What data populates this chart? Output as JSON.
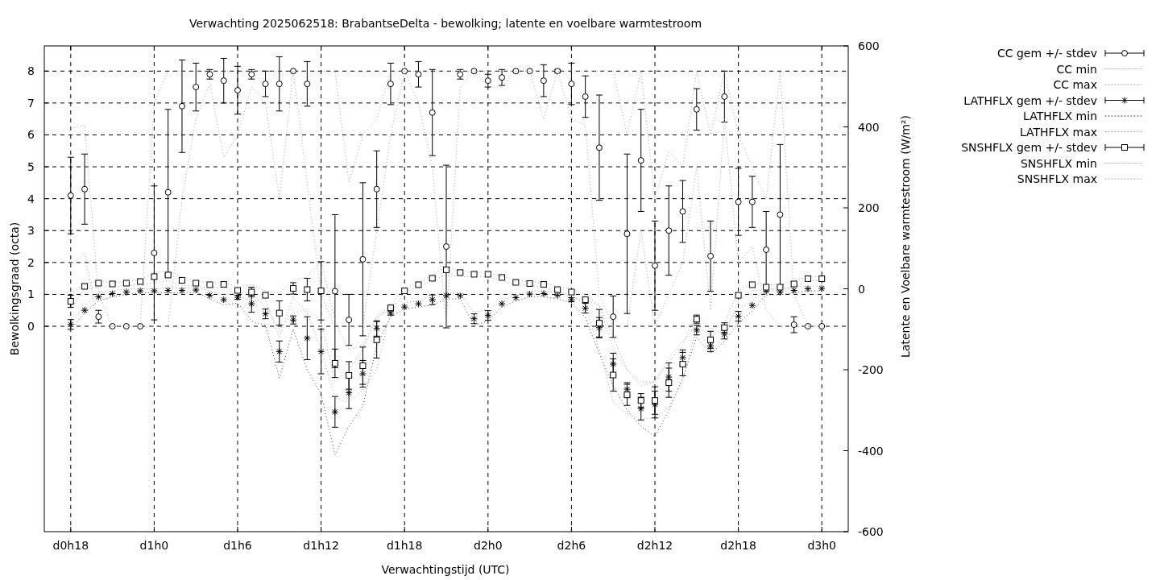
{
  "chart_data": {
    "type": "scatter",
    "title": "Verwachting 2025062518: BrabantseDelta - bewolking; latente en voelbare warmtestroom",
    "xlabel": "Verwachtingstijd (UTC)",
    "ylabel": "Bewolkingsgraad (octa)",
    "y2label": "Latente en Voelbare warmtestroom (W/m²)",
    "categories": [
      "d0h18",
      null,
      null,
      null,
      null,
      null,
      "d1h0",
      null,
      null,
      null,
      null,
      null,
      "d1h6",
      null,
      null,
      null,
      null,
      null,
      "d1h12",
      null,
      null,
      null,
      null,
      null,
      "d1h18",
      null,
      null,
      null,
      null,
      null,
      "d2h0",
      null,
      null,
      null,
      null,
      null,
      "d2h6",
      null,
      null,
      null,
      null,
      null,
      "d2h12",
      null,
      null,
      null,
      null,
      null,
      "d2h18",
      null,
      null,
      null,
      null,
      null,
      "d3h0"
    ],
    "ylim": [
      -6.44,
      8.79
    ],
    "yticks": [
      0,
      1,
      2,
      3,
      4,
      5,
      6,
      7,
      8
    ],
    "y2lim": [
      -600,
      600
    ],
    "y2ticks": [
      -600,
      -400,
      -200,
      0,
      200,
      400,
      600
    ],
    "grid": true,
    "legend": "right",
    "series": [
      {
        "name": "CC gem +/- stdev",
        "marker": "circle",
        "color": "#000000",
        "values": [
          4.1,
          4.3,
          0.3,
          0,
          0,
          0,
          2.3,
          4.2,
          6.9,
          7.5,
          7.9,
          7.7,
          7.4,
          7.9,
          7.6,
          7.6,
          8,
          7.6,
          null,
          1.1,
          0.2,
          2.1,
          4.3,
          7.6,
          8,
          7.9,
          6.7,
          2.5,
          7.9,
          8,
          7.7,
          7.8,
          8,
          8,
          7.7,
          8,
          7.6,
          7.2,
          5.6,
          0.3,
          2.9,
          5.2,
          1.9,
          3.0,
          3.6,
          6.8,
          2.2,
          7.2,
          3.9,
          3.9,
          2.4,
          3.5,
          0.05,
          0,
          0
        ],
        "errors": [
          1.2,
          1.1,
          0.2,
          null,
          null,
          null,
          2.1,
          2.6,
          1.45,
          0.75,
          0.15,
          0.7,
          0.75,
          0.15,
          0.4,
          0.85,
          null,
          0.7,
          null,
          2.4,
          0.8,
          2.4,
          1.2,
          0.65,
          null,
          0.4,
          1.35,
          2.55,
          0.15,
          null,
          0.2,
          0.25,
          null,
          null,
          0.5,
          0.05,
          0.65,
          0.65,
          1.65,
          0.65,
          2.5,
          1.6,
          1.4,
          1.4,
          0.97,
          0.65,
          1.1,
          0.8,
          1.05,
          0.8,
          1.2,
          2.2,
          0.25,
          null,
          null
        ]
      },
      {
        "name": "CC min",
        "type": "line",
        "line_style": "dotted",
        "color": "#a0a0a0",
        "values": [
          1.9,
          2.3,
          0,
          0,
          0,
          0,
          0,
          0,
          4,
          6.5,
          7.6,
          5.3,
          6,
          7.5,
          7,
          4,
          8,
          4.5,
          1,
          0,
          0,
          0,
          3,
          6,
          8,
          7,
          5,
          0,
          7.5,
          8,
          7.5,
          7.5,
          8,
          8,
          6.5,
          8,
          6.5,
          6.3,
          1,
          0,
          0,
          3,
          0,
          1,
          2,
          5,
          0.5,
          6.5,
          2,
          2.5,
          0.5,
          0,
          0,
          0,
          0
        ]
      },
      {
        "name": "CC max",
        "type": "line",
        "line_style": "dotted",
        "color": "#a0a0a0",
        "values": [
          6.2,
          6.3,
          1,
          0,
          0,
          0,
          7,
          8,
          8,
          8,
          8,
          8,
          8,
          8,
          8,
          8,
          8,
          8,
          8,
          8,
          4.5,
          6,
          6.5,
          8,
          8,
          8,
          8,
          8,
          8,
          8,
          8,
          8,
          8,
          8,
          8,
          8,
          8,
          8,
          8,
          8,
          6,
          8,
          4,
          5.5,
          5,
          8,
          6,
          8,
          6,
          5,
          4,
          8,
          1,
          0,
          0
        ]
      },
      {
        "name": "LATHFLX gem +/- stdev",
        "marker": "cross",
        "axis": "y2",
        "color": "#000000",
        "values": [
          -88,
          -53,
          -20,
          -12,
          -8,
          -5,
          -5,
          -4,
          -4,
          -3,
          -16,
          -27,
          -21,
          -37,
          -62,
          -155,
          -77,
          -122,
          -155,
          -304,
          -257,
          -210,
          -98,
          -60,
          -45,
          -37,
          -27,
          -17,
          -17,
          -74,
          -66,
          -37,
          -22,
          -13,
          -12,
          -16,
          -27,
          -48,
          -96,
          -186,
          -248,
          -296,
          -286,
          -218,
          -170,
          -102,
          -141,
          -112,
          -68,
          -41,
          -6,
          -8,
          -4,
          0,
          1
        ],
        "errors": [
          12,
          null,
          null,
          null,
          null,
          null,
          null,
          null,
          null,
          null,
          null,
          null,
          5,
          21,
          12,
          26,
          10,
          53,
          55,
          38,
          39,
          33,
          19,
          5,
          null,
          null,
          12,
          null,
          null,
          12,
          12,
          null,
          null,
          null,
          null,
          null,
          5,
          12,
          25,
          27,
          16,
          28,
          33,
          35,
          19,
          12,
          14,
          12,
          12,
          null,
          null,
          null,
          null,
          null,
          null
        ]
      },
      {
        "name": "LATHFLX min",
        "type": "line",
        "line_style": "dotted",
        "axis": "y2",
        "color": "#404040",
        "values": [
          -100,
          -60,
          -30,
          -20,
          -15,
          -10,
          -10,
          -10,
          -10,
          -8,
          -25,
          -40,
          -35,
          -80,
          -90,
          -220,
          -100,
          -200,
          -260,
          -410,
          -340,
          -290,
          -140,
          -70,
          -50,
          -45,
          -40,
          -25,
          -25,
          -90,
          -80,
          -45,
          -30,
          -20,
          -20,
          -25,
          -35,
          -70,
          -160,
          -240,
          -300,
          -340,
          -365,
          -300,
          -220,
          -120,
          -160,
          -130,
          -85,
          -55,
          -15,
          -15,
          -10,
          -5,
          -5
        ]
      },
      {
        "name": "LATHFLX max",
        "type": "line",
        "line_style": "dotted",
        "axis": "y2",
        "color": "#a0a0a0",
        "values": [
          -75,
          -45,
          -10,
          -5,
          0,
          0,
          0,
          2,
          2,
          3,
          -5,
          -15,
          -10,
          -10,
          -45,
          -100,
          -60,
          -50,
          -80,
          -230,
          -200,
          -150,
          -70,
          -50,
          -35,
          -30,
          -15,
          -10,
          -10,
          -60,
          -50,
          -30,
          -15,
          -5,
          -5,
          -10,
          -20,
          -30,
          -40,
          -120,
          -200,
          -240,
          -230,
          -170,
          -130,
          -90,
          -120,
          -95,
          -50,
          -30,
          0,
          0,
          5,
          5,
          8
        ]
      },
      {
        "name": "SNSHFLX gem +/- stdev",
        "marker": "square",
        "axis": "y2",
        "color": "#000000",
        "values": [
          -31,
          6,
          14,
          12,
          14,
          18,
          30,
          34,
          21,
          14,
          10,
          11,
          -4,
          -8,
          -16,
          -60,
          1,
          -2,
          -5,
          -184,
          -214,
          -190,
          -126,
          -47,
          -5,
          10,
          26,
          47,
          40,
          36,
          36,
          28,
          16,
          13,
          11,
          -2,
          -8,
          -27,
          -85,
          -213,
          -262,
          -276,
          -276,
          -232,
          -186,
          -75,
          -126,
          -96,
          -16,
          10,
          4,
          4,
          12,
          25,
          25
        ],
        "errors": [
          15,
          null,
          null,
          null,
          null,
          null,
          null,
          4,
          null,
          null,
          null,
          null,
          null,
          12,
          null,
          30,
          14,
          28,
          72,
          35,
          34,
          46,
          45,
          5,
          null,
          null,
          5,
          null,
          null,
          null,
          null,
          null,
          null,
          null,
          null,
          4,
          null,
          null,
          34,
          40,
          26,
          17,
          34,
          36,
          29,
          10,
          21,
          12,
          null,
          null,
          null,
          null,
          null,
          null,
          null
        ]
      },
      {
        "name": "SNSHFLX min",
        "type": "line",
        "line_style": "dotted",
        "axis": "y2",
        "color": "#a0a0a0",
        "values": [
          -50,
          0,
          5,
          5,
          8,
          10,
          15,
          20,
          10,
          5,
          3,
          5,
          -15,
          -30,
          -25,
          -120,
          -20,
          -60,
          -150,
          -270,
          -280,
          -250,
          -200,
          -55,
          -10,
          5,
          20,
          35,
          30,
          30,
          30,
          20,
          10,
          8,
          5,
          -8,
          -15,
          -40,
          -150,
          -280,
          -310,
          -320,
          -320,
          -290,
          -230,
          -90,
          -160,
          -115,
          -30,
          -5,
          -3,
          -5,
          5,
          20,
          20
        ]
      },
      {
        "name": "SNSHFLX max",
        "type": "line",
        "line_style": "dotted",
        "axis": "y2",
        "color": "#a0a0a0",
        "values": [
          -10,
          10,
          20,
          15,
          18,
          22,
          40,
          45,
          30,
          20,
          15,
          15,
          5,
          10,
          -5,
          -10,
          20,
          30,
          70,
          -80,
          -150,
          -140,
          -70,
          -40,
          0,
          15,
          35,
          55,
          45,
          40,
          40,
          32,
          20,
          18,
          15,
          5,
          0,
          -15,
          -40,
          -150,
          -200,
          -230,
          -230,
          -180,
          -140,
          -60,
          -100,
          -85,
          -5,
          15,
          10,
          10,
          20,
          30,
          30
        ]
      }
    ]
  }
}
